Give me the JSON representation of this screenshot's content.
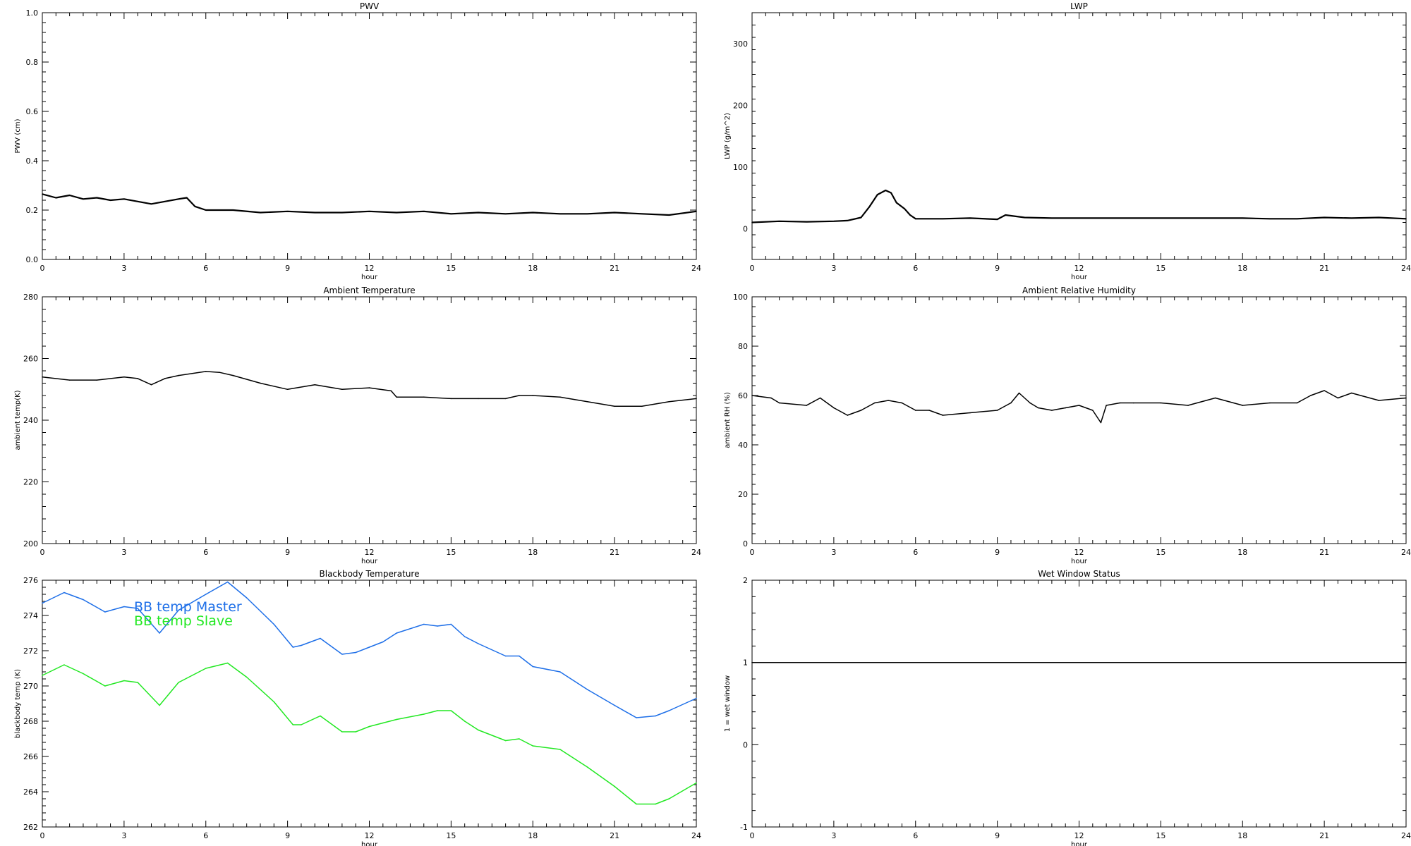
{
  "chart_data": [
    {
      "type": "line",
      "title": "PWV",
      "xlabel": "hour",
      "ylabel": "PWV (cm)",
      "xlim": [
        0,
        24
      ],
      "ylim": [
        0.0,
        1.0
      ],
      "xticks": [
        0,
        3,
        6,
        9,
        12,
        15,
        18,
        21,
        24
      ],
      "yticks": [
        0.0,
        0.2,
        0.4,
        0.6,
        0.8,
        1.0
      ],
      "ytick_labels": [
        "0.0",
        "0.2",
        "0.4",
        "0.6",
        "0.8",
        "1.0"
      ],
      "grid": false,
      "series": [
        {
          "color": "#000000",
          "x": [
            0,
            0.5,
            1,
            1.5,
            2,
            2.5,
            3,
            3.5,
            4,
            4.5,
            5,
            5.3,
            5.6,
            6,
            7,
            8,
            9,
            10,
            11,
            12,
            13,
            14,
            15,
            16,
            17,
            18,
            19,
            20,
            21,
            22,
            23,
            24
          ],
          "y": [
            0.265,
            0.25,
            0.26,
            0.245,
            0.25,
            0.24,
            0.245,
            0.235,
            0.225,
            0.235,
            0.245,
            0.25,
            0.215,
            0.2,
            0.2,
            0.19,
            0.195,
            0.19,
            0.19,
            0.195,
            0.19,
            0.195,
            0.185,
            0.19,
            0.185,
            0.19,
            0.185,
            0.185,
            0.19,
            0.185,
            0.18,
            0.195
          ]
        }
      ]
    },
    {
      "type": "line",
      "title": "LWP",
      "xlabel": "hour",
      "ylabel": "LWP (g/m^2)",
      "xlim": [
        0,
        24
      ],
      "ylim": [
        -50,
        350
      ],
      "xticks": [
        0,
        3,
        6,
        9,
        12,
        15,
        18,
        21,
        24
      ],
      "yticks": [
        0,
        100,
        200,
        300
      ],
      "ytick_labels": [
        "0",
        "100",
        "200",
        "300"
      ],
      "grid": false,
      "series": [
        {
          "color": "#000000",
          "x": [
            0,
            1,
            2,
            3,
            3.5,
            4,
            4.3,
            4.6,
            4.9,
            5.1,
            5.3,
            5.6,
            5.8,
            6,
            7,
            8,
            9,
            9.3,
            10,
            11,
            12,
            13,
            14,
            15,
            16,
            17,
            18,
            19,
            20,
            21,
            22,
            23,
            24
          ],
          "y": [
            10,
            12,
            11,
            12,
            13,
            18,
            35,
            55,
            62,
            58,
            42,
            32,
            22,
            16,
            16,
            17,
            15,
            22,
            18,
            17,
            17,
            17,
            17,
            17,
            17,
            17,
            17,
            16,
            16,
            18,
            17,
            18,
            16
          ]
        }
      ]
    },
    {
      "type": "line",
      "title": "Ambient Temperature",
      "xlabel": "hour",
      "ylabel": "ambient temp(K)",
      "xlim": [
        0,
        24
      ],
      "ylim": [
        200,
        280
      ],
      "xticks": [
        0,
        3,
        6,
        9,
        12,
        15,
        18,
        21,
        24
      ],
      "yticks": [
        200,
        220,
        240,
        260,
        280
      ],
      "ytick_labels": [
        "200",
        "220",
        "240",
        "260",
        "280"
      ],
      "grid": false,
      "series": [
        {
          "color": "#000000",
          "x": [
            0,
            1,
            2,
            3,
            3.5,
            4,
            4.5,
            5,
            6,
            6.5,
            7,
            8,
            9,
            10,
            11,
            12,
            12.8,
            13,
            14,
            15,
            16,
            17,
            17.5,
            18,
            19,
            20,
            21,
            22,
            23,
            24
          ],
          "y": [
            254,
            253,
            253,
            254,
            253.5,
            251.5,
            253.5,
            254.5,
            255.8,
            255.5,
            254.5,
            252,
            250,
            251.5,
            250,
            250.5,
            249.5,
            247.5,
            247.5,
            247,
            247,
            247,
            248,
            248,
            247.5,
            246,
            244.5,
            244.5,
            246,
            247
          ]
        }
      ]
    },
    {
      "type": "line",
      "title": "Ambient Relative Humidity",
      "xlabel": "hour",
      "ylabel": "ambient RH (%)",
      "xlim": [
        0,
        24
      ],
      "ylim": [
        0,
        100
      ],
      "xticks": [
        0,
        3,
        6,
        9,
        12,
        15,
        18,
        21,
        24
      ],
      "yticks": [
        0,
        20,
        40,
        60,
        80,
        100
      ],
      "ytick_labels": [
        "0",
        "20",
        "40",
        "60",
        "80",
        "100"
      ],
      "grid": false,
      "series": [
        {
          "color": "#000000",
          "x": [
            0,
            0.7,
            1,
            2,
            2.5,
            3,
            3.5,
            4,
            4.5,
            5,
            5.5,
            6,
            6.5,
            7,
            8,
            9,
            9.5,
            9.8,
            10.2,
            10.5,
            11,
            11.5,
            12,
            12.5,
            12.8,
            13,
            13.5,
            14,
            15,
            16,
            17,
            18,
            19,
            20,
            20.5,
            21,
            21.5,
            22,
            23,
            24
          ],
          "y": [
            60,
            59,
            57,
            56,
            59,
            55,
            52,
            54,
            57,
            58,
            57,
            54,
            54,
            52,
            53,
            54,
            57,
            61,
            57,
            55,
            54,
            55,
            56,
            54,
            49,
            56,
            57,
            57,
            57,
            56,
            59,
            56,
            57,
            57,
            60,
            62,
            59,
            61,
            58,
            59
          ]
        }
      ]
    },
    {
      "type": "line",
      "title": "Blackbody Temperature",
      "xlabel": "hour",
      "ylabel": "blackbody temp (K)",
      "xlim": [
        0,
        24
      ],
      "ylim": [
        262,
        276
      ],
      "xticks": [
        0,
        3,
        6,
        9,
        12,
        15,
        18,
        21,
        24
      ],
      "yticks": [
        262,
        264,
        266,
        268,
        270,
        272,
        274,
        276
      ],
      "ytick_labels": [
        "262",
        "264",
        "266",
        "268",
        "270",
        "272",
        "274",
        "276"
      ],
      "grid": false,
      "legend": "upper-left",
      "series": [
        {
          "name": "BB temp Master",
          "color": "#1e6fe8",
          "x": [
            0,
            0.8,
            1.5,
            2.3,
            3,
            3.5,
            4.3,
            5,
            6,
            6.8,
            7.5,
            8.5,
            9.2,
            9.5,
            10.2,
            11,
            11.5,
            12,
            12.5,
            13,
            14,
            14.5,
            15,
            15.5,
            16,
            17,
            17.5,
            18,
            19,
            20,
            21,
            21.8,
            22.5,
            23,
            24
          ],
          "y": [
            274.7,
            275.3,
            274.9,
            274.2,
            274.5,
            274.4,
            273.0,
            274.3,
            275.2,
            275.9,
            275.0,
            273.5,
            272.2,
            272.3,
            272.7,
            271.8,
            271.9,
            272.2,
            272.5,
            273.0,
            273.5,
            273.4,
            273.5,
            272.8,
            272.4,
            271.7,
            271.7,
            271.1,
            270.8,
            269.8,
            268.9,
            268.2,
            268.3,
            268.6,
            269.3
          ]
        },
        {
          "name": "BB temp Slave",
          "color": "#22e822",
          "x": [
            0,
            0.8,
            1.5,
            2.3,
            3,
            3.5,
            4.3,
            5,
            6,
            6.8,
            7.5,
            8.5,
            9.2,
            9.5,
            10.2,
            11,
            11.5,
            12,
            12.5,
            13,
            14,
            14.5,
            15,
            15.5,
            16,
            17,
            17.5,
            18,
            19,
            20,
            21,
            21.8,
            22.5,
            23,
            24
          ],
          "y": [
            270.6,
            271.2,
            270.7,
            270.0,
            270.3,
            270.2,
            268.9,
            270.2,
            271.0,
            271.3,
            270.5,
            269.1,
            267.8,
            267.8,
            268.3,
            267.4,
            267.4,
            267.7,
            267.9,
            268.1,
            268.4,
            268.6,
            268.6,
            268.0,
            267.5,
            266.9,
            267.0,
            266.6,
            266.4,
            265.4,
            264.3,
            263.3,
            263.3,
            263.6,
            264.5
          ]
        }
      ]
    },
    {
      "type": "line",
      "title": "Wet Window Status",
      "xlabel": "hour",
      "ylabel": "1 = wet window",
      "xlim": [
        0,
        24
      ],
      "ylim": [
        -1,
        2
      ],
      "xticks": [
        0,
        3,
        6,
        9,
        12,
        15,
        18,
        21,
        24
      ],
      "yticks": [
        -1,
        0,
        1,
        2
      ],
      "ytick_labels": [
        "-1",
        "0",
        "1",
        "2"
      ],
      "grid": false,
      "series": [
        {
          "color": "#000000",
          "x": [
            0,
            24
          ],
          "y": [
            1,
            1
          ]
        }
      ]
    }
  ]
}
